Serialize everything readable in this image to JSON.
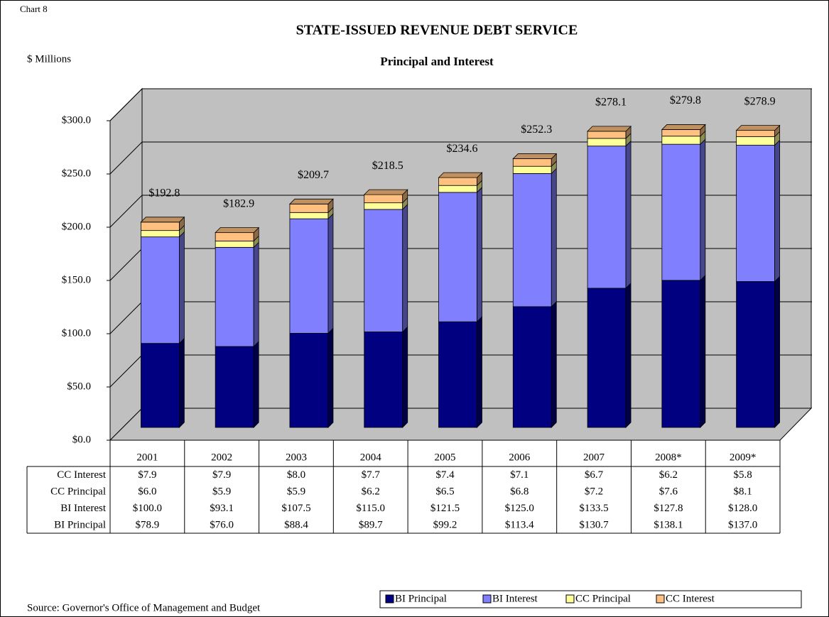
{
  "chart_data": {
    "type": "bar",
    "stacked": true,
    "chart_label": "Chart 8",
    "title": "STATE-ISSUED REVENUE DEBT SERVICE",
    "subtitle": "Principal and Interest",
    "y_axis_label": "$ Millions",
    "source": "Source: Governor's Office of Management and Budget",
    "categories": [
      "2001",
      "2002",
      "2003",
      "2004",
      "2005",
      "2006",
      "2007",
      "2008*",
      "2009*"
    ],
    "series": [
      {
        "name": "BI Principal",
        "color": "#000080",
        "values": [
          78.9,
          76.0,
          88.4,
          89.7,
          99.2,
          113.4,
          130.7,
          138.1,
          137.0
        ],
        "value_labels": [
          "$78.9",
          "$76.0",
          "$88.4",
          "$89.7",
          "$99.2",
          "$113.4",
          "$130.7",
          "$138.1",
          "$137.0"
        ]
      },
      {
        "name": "BI Interest",
        "color": "#8080ff",
        "values": [
          100.0,
          93.1,
          107.5,
          115.0,
          121.5,
          125.0,
          133.5,
          127.8,
          128.0
        ],
        "value_labels": [
          "$100.0",
          "$93.1",
          "$107.5",
          "$115.0",
          "$121.5",
          "$125.0",
          "$133.5",
          "$127.8",
          "$128.0"
        ]
      },
      {
        "name": "CC Principal",
        "color": "#ffff99",
        "values": [
          6.0,
          5.9,
          5.9,
          6.2,
          6.5,
          6.8,
          7.2,
          7.6,
          8.1
        ],
        "value_labels": [
          "$6.0",
          "$5.9",
          "$5.9",
          "$6.2",
          "$6.5",
          "$6.8",
          "$7.2",
          "$7.6",
          "$8.1"
        ]
      },
      {
        "name": "CC Interest",
        "color": "#ffc080",
        "values": [
          7.9,
          7.9,
          8.0,
          7.7,
          7.4,
          7.1,
          6.7,
          6.2,
          5.8
        ],
        "value_labels": [
          "$7.9",
          "$7.9",
          "$8.0",
          "$7.7",
          "$7.4",
          "$7.1",
          "$6.7",
          "$6.2",
          "$5.8"
        ]
      }
    ],
    "totals": [
      192.8,
      182.9,
      209.7,
      218.5,
      234.6,
      252.3,
      278.1,
      279.8,
      278.9
    ],
    "total_labels": [
      "$192.8",
      "$182.9",
      "$209.7",
      "$218.5",
      "$234.6",
      "$252.3",
      "$278.1",
      "$279.8",
      "$278.9"
    ],
    "ylim": [
      0,
      300
    ],
    "yticks": [
      {
        "value": 0,
        "label": "$0.0"
      },
      {
        "value": 50,
        "label": "$50.0"
      },
      {
        "value": 100,
        "label": "$100.0"
      },
      {
        "value": 150,
        "label": "$150.0"
      },
      {
        "value": 200,
        "label": "$200.0"
      },
      {
        "value": 250,
        "label": "$250.0"
      },
      {
        "value": 300,
        "label": "$300.0"
      }
    ],
    "grid": true,
    "legend": "bottom-right"
  }
}
